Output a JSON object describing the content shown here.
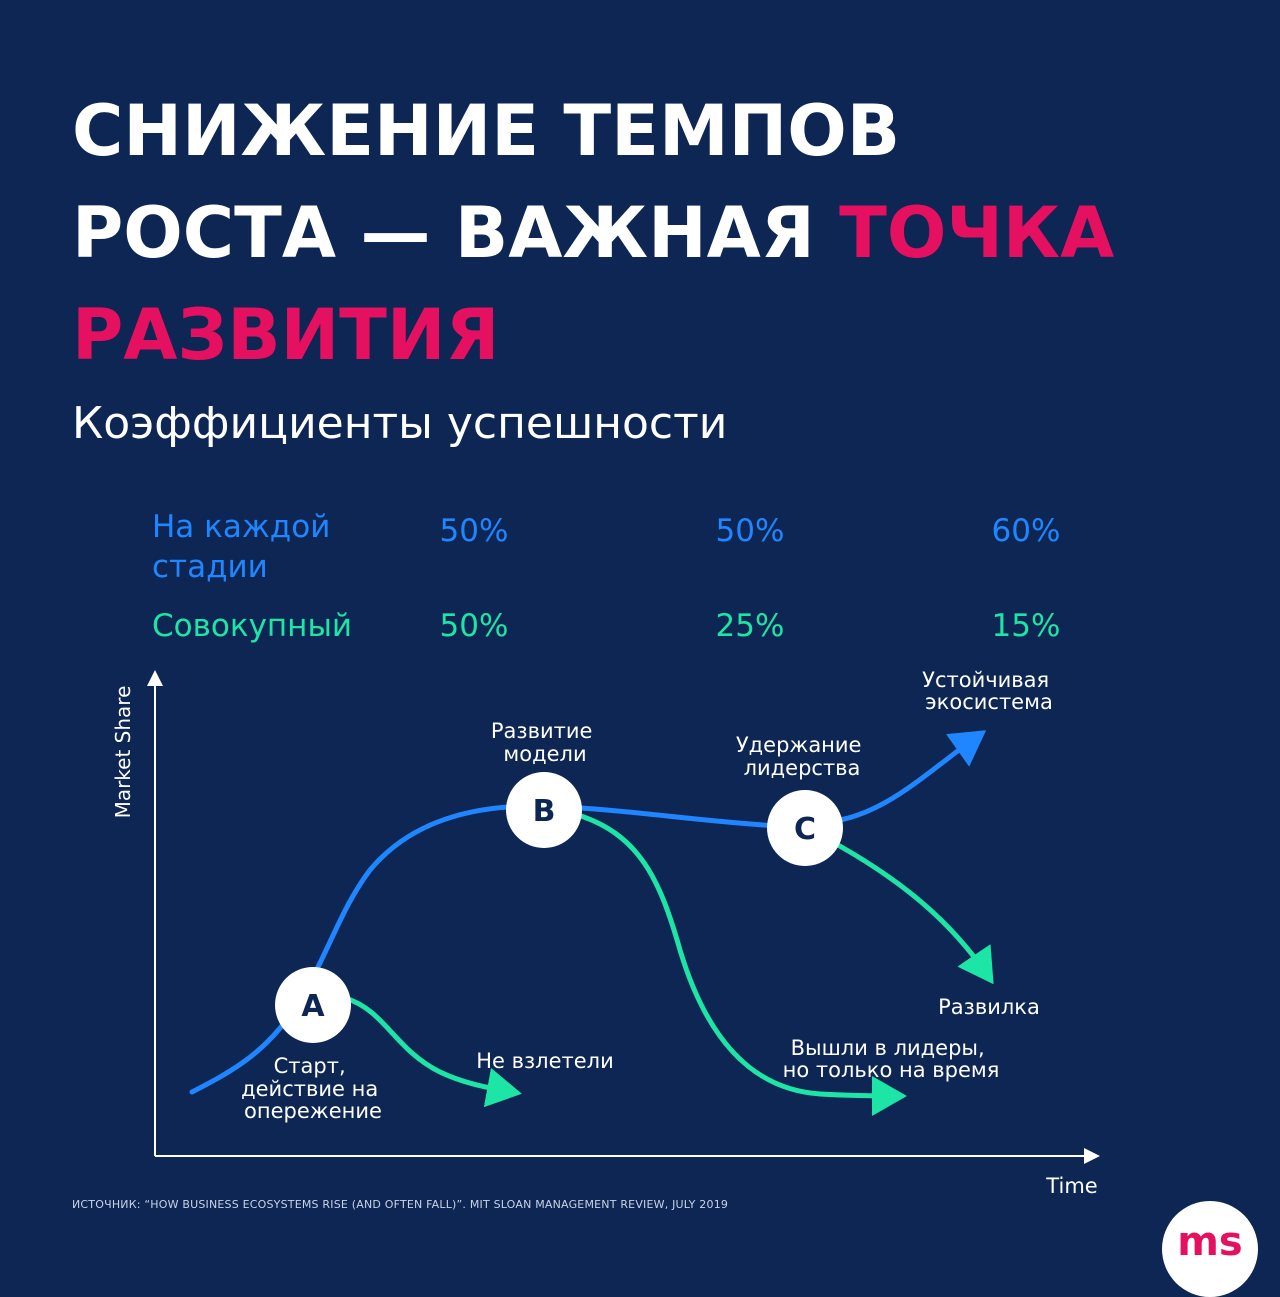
{
  "title": {
    "line1": "СНИЖЕНИЕ ТЕМПОВ",
    "line2_white": "РОСТА — ВАЖНАЯ",
    "line2_accent": "ТОЧКА",
    "line3_accent": "РАЗВИТИЯ"
  },
  "subtitle": "Коэффициенты успешности",
  "rates": {
    "per_stage": {
      "label": "На каждой стадии",
      "values": [
        "50%",
        "50%",
        "60%"
      ]
    },
    "cumulative": {
      "label": "Совокупный",
      "values": [
        "50%",
        "25%",
        "15%"
      ]
    }
  },
  "diagram": {
    "y_axis_label": "Market Share",
    "x_axis_label": "Time",
    "nodes": [
      "A",
      "B",
      "C"
    ],
    "labels": {
      "start": [
        "Старт,",
        "действие на",
        "опережение"
      ],
      "not_taken_off": "Не взлетели",
      "model_development": [
        "Развитие",
        "модели"
      ],
      "leaders_temporary": [
        "Вышли в лидеры,",
        "но только на время"
      ],
      "leadership_retention": [
        "Удержание",
        "лидерства"
      ],
      "sustainable_ecosystem": [
        "Устойчивая",
        "экосистема"
      ],
      "fork": "Развилка"
    }
  },
  "source": "ИСТОЧНИК: “HOW BUSINESS ECOSYSTEMS RISE (AND OFTEN FALL)”. MIT SLOAN MANAGEMENT REVIEW, JULY 2019",
  "logo": "ms",
  "colors": {
    "background": "#0d2654",
    "accent": "#e5105f",
    "blue": "#1f86ff",
    "green": "#1de5a5"
  }
}
